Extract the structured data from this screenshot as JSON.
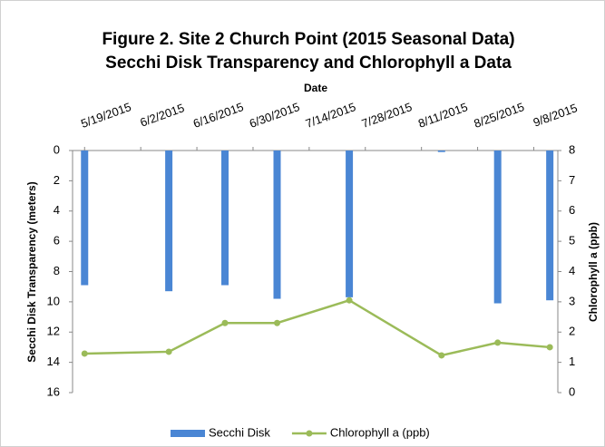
{
  "chart_data": {
    "type": "bar-line",
    "title": [
      "Figure 2. Site 2 Church Point (2015 Seasonal Data)",
      "Secchi Disk Transparency and Chlorophyll a Data"
    ],
    "xlabel": "Date",
    "ylabel": "Secchi Disk Transparency (meters)",
    "y2label": "Chlorophyll a (ppb)",
    "x": [
      "5/19/2015",
      "6/9/2015",
      "6/23/2015",
      "7/6/2015",
      "7/24/2015",
      "8/16/2015",
      "8/30/2015",
      "9/12/2015"
    ],
    "xlim": [
      "5/16/2015",
      "9/14/2015"
    ],
    "xticks": [
      "5/19/2015",
      "6/2/2015",
      "6/16/2015",
      "6/30/2015",
      "7/14/2015",
      "7/28/2015",
      "8/11/2015",
      "8/25/2015",
      "9/8/2015"
    ],
    "ylim": [
      0,
      16
    ],
    "yreverse": true,
    "yticks": [
      0,
      2,
      4,
      6,
      8,
      10,
      12,
      14,
      16
    ],
    "y2lim": [
      0,
      8
    ],
    "y2ticks": [
      0,
      1,
      2,
      3,
      4,
      5,
      6,
      7,
      8
    ],
    "legend": "bottom",
    "series": [
      {
        "name": "Secchi Disk",
        "type": "bar",
        "color": "#4a86d4",
        "values": [
          8.9,
          9.3,
          8.9,
          9.8,
          9.7,
          0.1,
          10.1,
          9.9
        ]
      },
      {
        "name": "Chlorophyll a (ppb)",
        "type": "line",
        "axis": "y2",
        "color": "#9bbb59",
        "values": [
          1.29,
          1.35,
          2.3,
          2.3,
          3.05,
          1.23,
          1.65,
          1.5
        ]
      }
    ]
  }
}
